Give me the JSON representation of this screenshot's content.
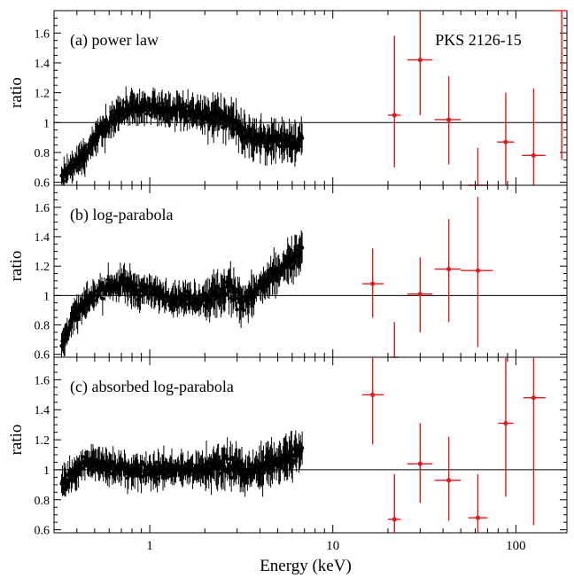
{
  "chart_data": {
    "type": "scatter",
    "source_label": "PKS 2126-15",
    "xlabel": "Energy (keV)",
    "xscale": "log",
    "xlim": [
      0.3,
      190
    ],
    "x_ticks": [
      1,
      10,
      100
    ],
    "x_tick_labels": [
      "1",
      "10",
      "100"
    ],
    "ylabel": "ratio",
    "ylim": [
      0.58,
      1.75
    ],
    "y_ticks": [
      0.6,
      0.8,
      1.0,
      1.2,
      1.4,
      1.6
    ],
    "y_tick_labels": [
      "0.6",
      "0.8",
      "1",
      "1.2",
      "1.4",
      "1.6"
    ],
    "reference_line": 1.0,
    "colors": {
      "soft_data": "#000000",
      "hard_data": "#e31a1c",
      "axes": "#000000"
    },
    "panels": [
      {
        "label": "(a) power law",
        "soft_band": {
          "energy_range_keV": [
            0.33,
            6.8
          ],
          "profile": [
            {
              "x": 0.33,
              "y": 0.63
            },
            {
              "x": 0.38,
              "y": 0.7
            },
            {
              "x": 0.45,
              "y": 0.8
            },
            {
              "x": 0.55,
              "y": 0.97
            },
            {
              "x": 0.7,
              "y": 1.07
            },
            {
              "x": 1.0,
              "y": 1.1
            },
            {
              "x": 1.5,
              "y": 1.08
            },
            {
              "x": 2.0,
              "y": 1.05
            },
            {
              "x": 2.8,
              "y": 1.02
            },
            {
              "x": 3.3,
              "y": 0.92
            },
            {
              "x": 4.0,
              "y": 0.88
            },
            {
              "x": 5.0,
              "y": 0.88
            },
            {
              "x": 6.8,
              "y": 0.88
            }
          ]
        },
        "hard_band": [
          {
            "x": 21.7,
            "y": 1.05,
            "xerr": [
              20.0,
              23.5
            ],
            "yerr": [
              0.7,
              1.58
            ]
          },
          {
            "x": 30.0,
            "y": 1.42,
            "xerr": [
              25.5,
              35.0
            ],
            "yerr": [
              1.05,
              1.75
            ]
          },
          {
            "x": 43.0,
            "y": 1.02,
            "xerr": [
              36.0,
              50.0
            ],
            "yerr": [
              0.72,
              1.31
            ]
          },
          {
            "x": 62.0,
            "y": 0.58,
            "xerr": [
              55.0,
              70.0
            ],
            "yerr": [
              0.58,
              0.83
            ]
          },
          {
            "x": 88.0,
            "y": 0.87,
            "xerr": [
              79.0,
              98.0
            ],
            "yerr": [
              0.55,
              1.2
            ]
          },
          {
            "x": 125.0,
            "y": 0.78,
            "xerr": [
              108.0,
              145.0
            ],
            "yerr": [
              0.48,
              1.23
            ]
          },
          {
            "x": 178.0,
            "y": 1.75,
            "xerr": [
              160.0,
              190.0
            ],
            "yerr": [
              0.75,
              1.75
            ]
          }
        ]
      },
      {
        "label": "(b) log-parabola",
        "soft_band": {
          "energy_range_keV": [
            0.33,
            6.8
          ],
          "profile": [
            {
              "x": 0.33,
              "y": 0.66
            },
            {
              "x": 0.38,
              "y": 0.85
            },
            {
              "x": 0.45,
              "y": 0.95
            },
            {
              "x": 0.55,
              "y": 1.05
            },
            {
              "x": 0.7,
              "y": 1.08
            },
            {
              "x": 1.0,
              "y": 1.02
            },
            {
              "x": 1.5,
              "y": 0.98
            },
            {
              "x": 2.0,
              "y": 0.98
            },
            {
              "x": 2.8,
              "y": 1.05
            },
            {
              "x": 3.3,
              "y": 0.95
            },
            {
              "x": 4.0,
              "y": 1.05
            },
            {
              "x": 5.0,
              "y": 1.15
            },
            {
              "x": 6.8,
              "y": 1.3
            }
          ]
        },
        "hard_band": [
          {
            "x": 16.5,
            "y": 1.08,
            "xerr": [
              14.5,
              19.0
            ],
            "yerr": [
              0.85,
              1.32
            ]
          },
          {
            "x": 21.7,
            "y": 0.58,
            "xerr": [
              20.5,
              23.0
            ],
            "yerr": [
              0.58,
              0.82
            ]
          },
          {
            "x": 30.0,
            "y": 1.01,
            "xerr": [
              25.5,
              35.0
            ],
            "yerr": [
              0.75,
              1.26
            ]
          },
          {
            "x": 43.0,
            "y": 1.18,
            "xerr": [
              36.0,
              50.0
            ],
            "yerr": [
              0.82,
              1.52
            ]
          },
          {
            "x": 62.0,
            "y": 1.17,
            "xerr": [
              50.0,
              75.0
            ],
            "yerr": [
              0.65,
              1.67
            ]
          }
        ]
      },
      {
        "label": "(c) absorbed log-parabola",
        "soft_band": {
          "energy_range_keV": [
            0.33,
            6.8
          ],
          "profile": [
            {
              "x": 0.33,
              "y": 0.89
            },
            {
              "x": 0.38,
              "y": 0.98
            },
            {
              "x": 0.45,
              "y": 1.05
            },
            {
              "x": 0.55,
              "y": 1.03
            },
            {
              "x": 0.7,
              "y": 1.0
            },
            {
              "x": 1.0,
              "y": 1.0
            },
            {
              "x": 1.5,
              "y": 1.0
            },
            {
              "x": 2.0,
              "y": 1.0
            },
            {
              "x": 2.8,
              "y": 1.05
            },
            {
              "x": 3.3,
              "y": 0.96
            },
            {
              "x": 4.0,
              "y": 1.02
            },
            {
              "x": 5.0,
              "y": 1.06
            },
            {
              "x": 6.8,
              "y": 1.12
            }
          ]
        },
        "hard_band": [
          {
            "x": 16.5,
            "y": 1.5,
            "xerr": [
              14.5,
              19.0
            ],
            "yerr": [
              1.17,
              1.75
            ]
          },
          {
            "x": 21.7,
            "y": 0.67,
            "xerr": [
              20.0,
              23.5
            ],
            "yerr": [
              0.58,
              0.97
            ]
          },
          {
            "x": 30.0,
            "y": 1.04,
            "xerr": [
              25.5,
              35.0
            ],
            "yerr": [
              0.78,
              1.31
            ]
          },
          {
            "x": 43.0,
            "y": 0.93,
            "xerr": [
              36.0,
              50.0
            ],
            "yerr": [
              0.66,
              1.22
            ]
          },
          {
            "x": 62.0,
            "y": 0.68,
            "xerr": [
              55.0,
              70.0
            ],
            "yerr": [
              0.58,
              0.97
            ]
          },
          {
            "x": 88.0,
            "y": 1.31,
            "xerr": [
              80.0,
              97.0
            ],
            "yerr": [
              0.82,
              1.75
            ]
          },
          {
            "x": 125.0,
            "y": 1.48,
            "xerr": [
              110.0,
              145.0
            ],
            "yerr": [
              0.63,
              1.75
            ]
          }
        ]
      }
    ]
  }
}
